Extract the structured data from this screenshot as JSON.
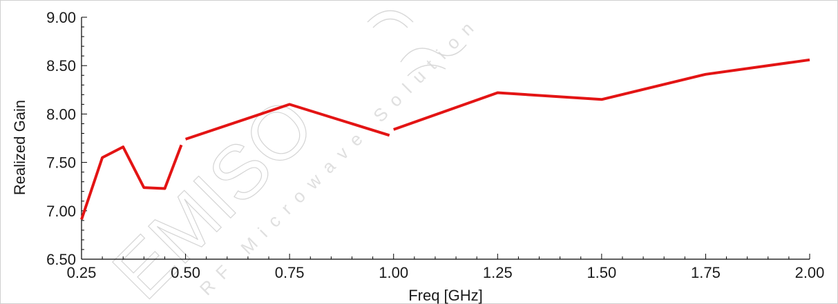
{
  "chart_data": {
    "type": "line",
    "xlabel": "Freq [GHz]",
    "ylabel": "Realized Gain",
    "xlim": [
      0.25,
      2.0
    ],
    "ylim": [
      6.5,
      9.0
    ],
    "x_ticks": [
      "0.25",
      "0.50",
      "0.75",
      "1.00",
      "1.25",
      "1.50",
      "1.75",
      "2.00"
    ],
    "y_ticks": [
      "9.00",
      "8.50",
      "8.00",
      "7.50",
      "7.00",
      "6.50"
    ],
    "x_tick_values": [
      0.25,
      0.5,
      0.75,
      1.0,
      1.25,
      1.5,
      1.75,
      2.0
    ],
    "y_tick_values": [
      9.0,
      8.5,
      8.0,
      7.5,
      7.0,
      6.5
    ],
    "grid": false,
    "line_color": "#e31414",
    "series": [
      {
        "segments": [
          {
            "x": [
              0.25,
              0.3,
              0.35,
              0.4,
              0.45,
              0.49
            ],
            "y": [
              6.91,
              7.55,
              7.66,
              7.24,
              7.23,
              7.68
            ]
          },
          {
            "x": [
              0.5,
              0.75,
              0.99
            ],
            "y": [
              7.74,
              8.1,
              7.78
            ]
          },
          {
            "x": [
              1.0,
              1.25,
              1.5,
              1.75,
              2.0
            ],
            "y": [
              7.84,
              8.22,
              8.15,
              8.41,
              8.56
            ]
          }
        ]
      }
    ]
  },
  "watermark": {
    "brand": "EMISO",
    "tagline": "RF Microwave Solution"
  }
}
